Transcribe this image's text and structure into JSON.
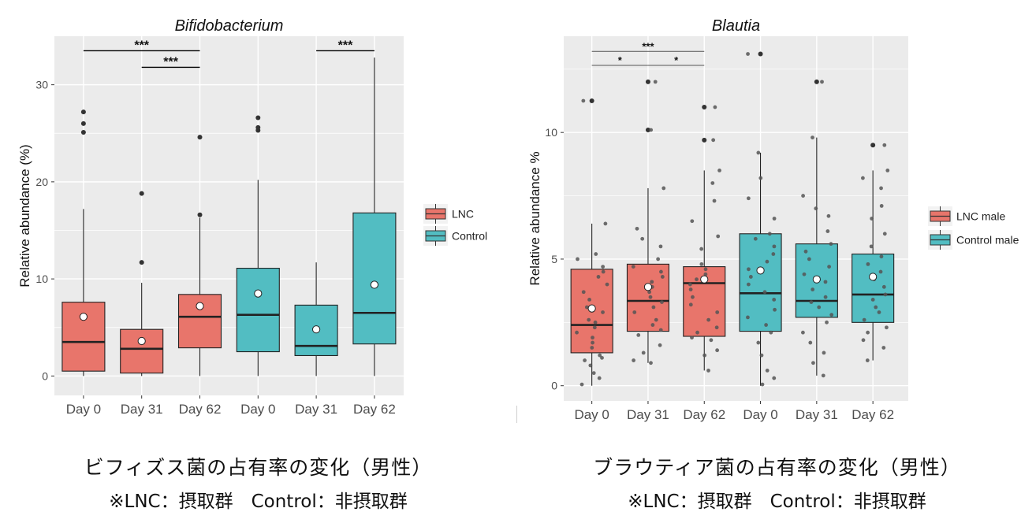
{
  "chart_data": [
    {
      "type": "box",
      "title": "Bifidobacterium",
      "xlabel": "",
      "ylabel": "Relative abundance (%)",
      "ylim": [
        -2,
        35
      ],
      "yticks": [
        0,
        10,
        20,
        30
      ],
      "categories": [
        "Day 0",
        "Day 31",
        "Day 62",
        "Day 0",
        "Day 31",
        "Day 62"
      ],
      "groups": [
        "LNC",
        "LNC",
        "LNC",
        "Control",
        "Control",
        "Control"
      ],
      "legend": {
        "position": "right",
        "entries": [
          {
            "name": "LNC",
            "color": "#E8756B"
          },
          {
            "name": "Control",
            "color": "#52BDC2"
          }
        ]
      },
      "boxes": [
        {
          "q1": 0.5,
          "median": 3.5,
          "q3": 7.6,
          "whisker_low": 0,
          "whisker_high": 17.2,
          "mean": 6.1,
          "outliers": [
            25.1,
            26.0,
            27.2
          ]
        },
        {
          "q1": 0.3,
          "median": 2.8,
          "q3": 4.8,
          "whisker_low": 0,
          "whisker_high": 9.6,
          "mean": 3.6,
          "outliers": [
            11.7,
            18.8
          ]
        },
        {
          "q1": 2.9,
          "median": 6.1,
          "q3": 8.4,
          "whisker_low": 0,
          "whisker_high": 16.3,
          "mean": 7.2,
          "outliers": [
            16.6,
            24.6
          ]
        },
        {
          "q1": 2.5,
          "median": 6.3,
          "q3": 11.1,
          "whisker_low": 0,
          "whisker_high": 20.2,
          "mean": 8.5,
          "outliers": [
            25.3,
            25.6,
            26.6
          ]
        },
        {
          "q1": 2.1,
          "median": 3.1,
          "q3": 7.3,
          "whisker_low": 0,
          "whisker_high": 11.7,
          "mean": 4.8,
          "outliers": []
        },
        {
          "q1": 3.3,
          "median": 6.5,
          "q3": 16.8,
          "whisker_low": 0,
          "whisker_high": 32.8,
          "mean": 9.4,
          "outliers": []
        }
      ],
      "points": [],
      "significance": [
        {
          "from": 0,
          "to": 2,
          "y": 33.5,
          "label": "***"
        },
        {
          "from": 1,
          "to": 2,
          "y": 31.8,
          "label": "***"
        },
        {
          "from": 4,
          "to": 5,
          "y": 33.5,
          "label": "***"
        }
      ]
    },
    {
      "type": "box",
      "title": "Blautia",
      "xlabel": "",
      "ylabel": "Relative abundance %",
      "ylim": [
        -0.6,
        13.8
      ],
      "yticks": [
        0,
        5,
        10
      ],
      "categories": [
        "Day 0",
        "Day 31",
        "Day 62",
        "Day 0",
        "Day 31",
        "Day 62"
      ],
      "groups": [
        "LNC male",
        "LNC male",
        "LNC male",
        "Control male",
        "Control male",
        "Control male"
      ],
      "legend": {
        "position": "right",
        "entries": [
          {
            "name": "LNC male",
            "color": "#E8756B"
          },
          {
            "name": "Control male",
            "color": "#52BDC2"
          }
        ]
      },
      "boxes": [
        {
          "q1": 1.3,
          "median": 2.4,
          "q3": 4.6,
          "whisker_low": 0,
          "whisker_high": 6.4,
          "mean": 3.05,
          "outliers": [
            11.25
          ]
        },
        {
          "q1": 2.15,
          "median": 3.35,
          "q3": 4.8,
          "whisker_low": 0.9,
          "whisker_high": 7.8,
          "mean": 3.9,
          "outliers": [
            10.1,
            12.0
          ]
        },
        {
          "q1": 1.95,
          "median": 4.05,
          "q3": 4.7,
          "whisker_low": 0.6,
          "whisker_high": 8.5,
          "mean": 4.2,
          "outliers": [
            9.7,
            11.0
          ]
        },
        {
          "q1": 2.15,
          "median": 3.65,
          "q3": 6.0,
          "whisker_low": 0,
          "whisker_high": 9.2,
          "mean": 4.55,
          "outliers": [
            13.1
          ]
        },
        {
          "q1": 2.7,
          "median": 3.35,
          "q3": 5.6,
          "whisker_low": 0.4,
          "whisker_high": 9.8,
          "mean": 4.2,
          "outliers": [
            12.0
          ]
        },
        {
          "q1": 2.5,
          "median": 3.6,
          "q3": 5.2,
          "whisker_low": 1.0,
          "whisker_high": 8.5,
          "mean": 4.3,
          "outliers": [
            9.5
          ]
        }
      ],
      "points": [
        [
          0.05,
          0.3,
          0.5,
          0.8,
          1.0,
          1.1,
          1.2,
          1.5,
          1.7,
          1.9,
          2.1,
          2.3,
          2.5,
          2.6,
          2.9,
          3.1,
          3.4,
          3.7,
          4.0,
          4.3,
          4.5,
          4.7,
          5.0,
          5.2,
          6.4,
          11.25
        ],
        [
          0.9,
          1.0,
          1.3,
          1.6,
          2.0,
          2.2,
          2.4,
          2.6,
          2.9,
          3.1,
          3.3,
          3.5,
          3.7,
          3.9,
          4.1,
          4.3,
          4.5,
          4.7,
          5.0,
          5.5,
          5.8,
          6.2,
          7.8,
          10.1,
          12.0
        ],
        [
          0.6,
          1.2,
          1.4,
          1.8,
          1.9,
          2.1,
          2.3,
          2.6,
          2.9,
          3.2,
          3.5,
          3.8,
          4.0,
          4.2,
          4.4,
          4.6,
          4.8,
          5.4,
          5.9,
          6.5,
          7.3,
          8.0,
          8.5,
          9.7,
          11.0
        ],
        [
          0.05,
          0.3,
          0.6,
          1.2,
          1.7,
          2.1,
          2.4,
          2.7,
          3.0,
          3.4,
          3.7,
          4.0,
          4.3,
          4.6,
          4.9,
          5.2,
          5.5,
          5.8,
          6.0,
          6.6,
          7.4,
          8.2,
          9.2,
          13.1
        ],
        [
          0.4,
          0.9,
          1.3,
          1.7,
          2.1,
          2.5,
          2.8,
          3.1,
          3.3,
          3.5,
          3.8,
          4.1,
          4.4,
          4.7,
          5.0,
          5.3,
          5.6,
          6.1,
          6.7,
          7.0,
          7.5,
          9.8,
          12.0
        ],
        [
          1.0,
          1.5,
          1.8,
          2.1,
          2.3,
          2.6,
          2.9,
          3.1,
          3.4,
          3.6,
          3.9,
          4.2,
          4.5,
          4.8,
          5.1,
          5.5,
          6.0,
          6.6,
          7.1,
          7.8,
          8.2,
          8.5,
          9.5
        ]
      ],
      "significance": [
        {
          "from": 0,
          "to": 2,
          "y": 13.2,
          "label": "***"
        },
        {
          "from": 0,
          "to": 1,
          "y": 12.65,
          "label": "*"
        },
        {
          "from": 1,
          "to": 2,
          "y": 12.65,
          "label": "*"
        }
      ]
    }
  ],
  "captions": [
    {
      "line1": "ビフィズス菌の占有率の変化（男性）",
      "line2": "※LNC：摂取群　Control：非摂取群"
    },
    {
      "line1": "ブラウティア菌の占有率の変化（男性）",
      "line2": "※LNC：摂取群　Control：非摂取群"
    }
  ],
  "colors": {
    "panel_bg": "#EBEBEB",
    "grid": "#FFFFFF",
    "lnc": "#E8756B",
    "control": "#52BDC2",
    "text": "#333333"
  }
}
